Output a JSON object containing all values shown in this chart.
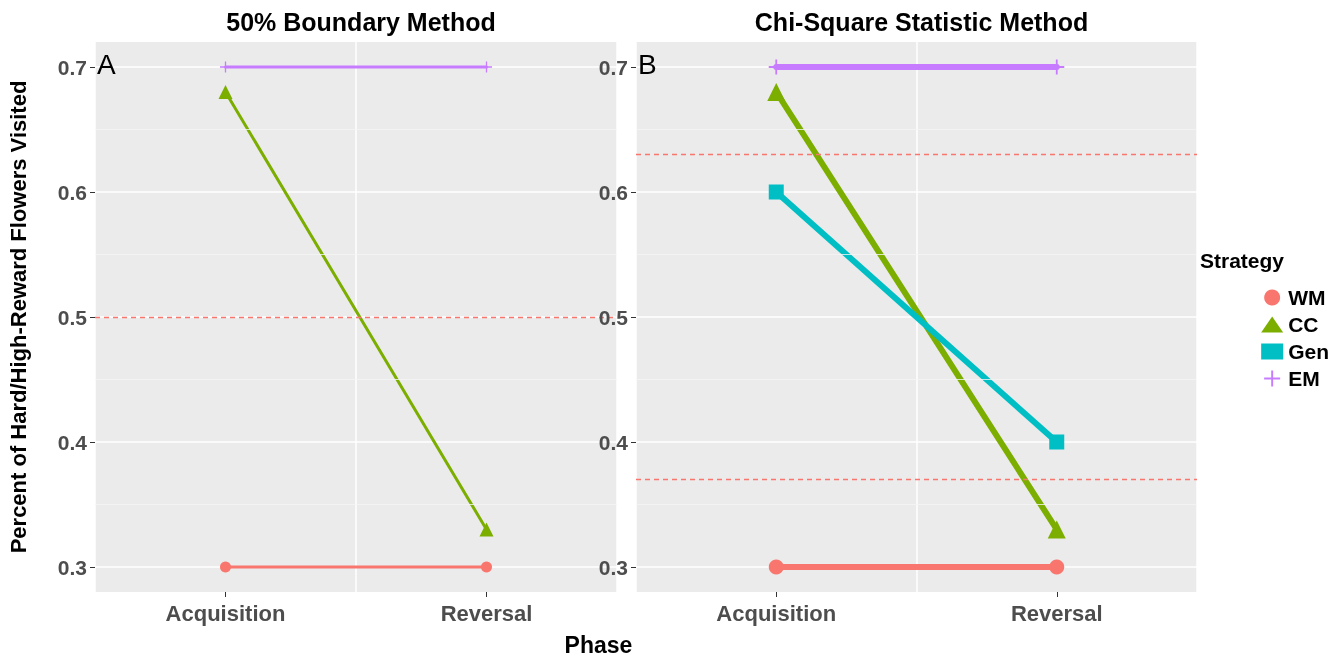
{
  "chart_data": [
    {
      "type": "line",
      "title": "50% Boundary Method",
      "ylabel": "Percent of Hard/High-Reward Flowers Visited",
      "xlabel": "Phase",
      "annotations": [
        "A"
      ],
      "categories": [
        "Acquisition",
        "Reversal"
      ],
      "series": [
        {
          "color": "#f8766d",
          "marker": "circle",
          "values": [
            0.3,
            0.3
          ]
        },
        {
          "color": "#7cae00",
          "marker": "triangle",
          "values": [
            0.68,
            0.33
          ]
        },
        {
          "color": "#c77cff",
          "marker": "cross",
          "values": [
            0.7,
            0.7
          ]
        }
      ],
      "ylim": [
        0.28,
        0.72
      ],
      "yticks": [
        0.3,
        0.4,
        0.5,
        0.6,
        0.7
      ],
      "grid": true,
      "legend": false,
      "ref_lines": [
        {
          "axis": "y",
          "value": 0.5,
          "color": "#f8766d",
          "line_style": "dashed"
        }
      ]
    },
    {
      "type": "line",
      "title": "Chi-Square Statistic Method",
      "annotations": [
        "B"
      ],
      "legend_title": "Strategy",
      "categories": [
        "Acquisition",
        "Reversal"
      ],
      "series": [
        {
          "name": "WM",
          "color": "#f8766d",
          "marker": "circle",
          "values": [
            0.3,
            0.3
          ]
        },
        {
          "name": "CC",
          "color": "#7cae00",
          "marker": "triangle",
          "values": [
            0.68,
            0.33
          ]
        },
        {
          "name": "Gen",
          "color": "#00bfc4",
          "marker": "square",
          "values": [
            0.6,
            0.4
          ]
        },
        {
          "name": "EM",
          "color": "#c77cff",
          "marker": "cross",
          "values": [
            0.7,
            0.7
          ]
        }
      ],
      "ylim": [
        0.28,
        0.72
      ],
      "yticks": [
        0.3,
        0.4,
        0.5,
        0.6,
        0.7
      ],
      "grid": true,
      "legend": "right",
      "ref_lines": [
        {
          "axis": "y",
          "value": 0.63,
          "color": "#f8766d",
          "line_style": "dashed"
        },
        {
          "axis": "y",
          "value": 0.37,
          "color": "#f8766d",
          "line_style": "dashed"
        }
      ]
    }
  ]
}
